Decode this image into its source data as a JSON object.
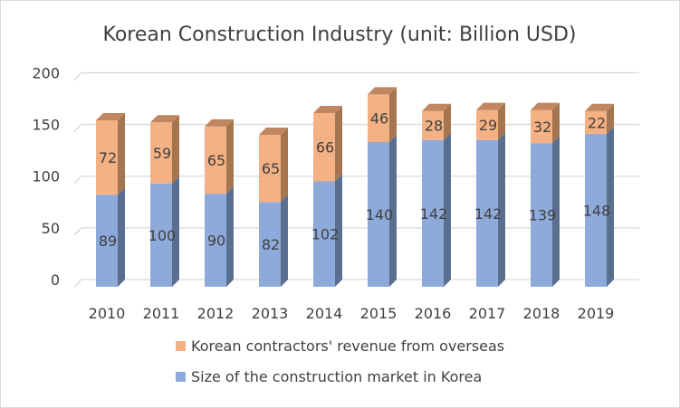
{
  "chart_data": {
    "type": "bar",
    "stacked": true,
    "style_3d": true,
    "title": "Korean Construction Industry (unit: Billion USD)",
    "categories": [
      "2010",
      "2011",
      "2012",
      "2013",
      "2014",
      "2015",
      "2016",
      "2017",
      "2018",
      "2019"
    ],
    "series": [
      {
        "name": "Size of the construction market in Korea",
        "values": [
          89,
          100,
          90,
          82,
          102,
          140,
          142,
          142,
          139,
          148
        ],
        "color": "#8eaadb",
        "side_color": "#5a6e8f",
        "top_color": "#7a93bf"
      },
      {
        "name": "Korean contractors' revenue from overseas",
        "values": [
          72,
          59,
          65,
          65,
          66,
          46,
          28,
          29,
          32,
          22
        ],
        "color": "#f4b183",
        "side_color": "#a5754f",
        "top_color": "#c08660"
      }
    ],
    "ylim": [
      0,
      200
    ],
    "yticks": [
      0,
      50,
      100,
      150,
      200
    ],
    "grid": true,
    "data_labels": true,
    "legend_position": "bottom",
    "legend_order": [
      "Korean contractors' revenue from overseas",
      "Size of the construction market in Korea"
    ]
  }
}
